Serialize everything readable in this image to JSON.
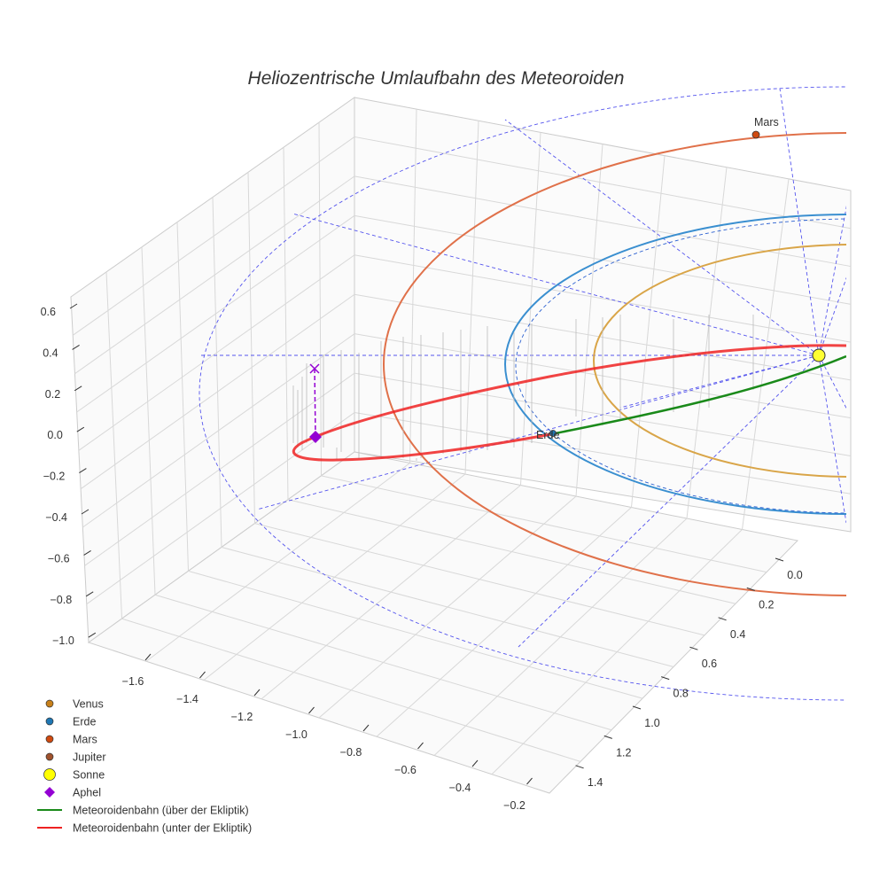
{
  "chart_data": {
    "type": "line3d",
    "title": "Heliozentrische Umlaufbahn des Meteoroiden",
    "x_ticks": [
      "−1.6",
      "−1.4",
      "−1.2",
      "−1.0",
      "−0.8",
      "−0.6",
      "−0.4",
      "−0.2"
    ],
    "y_ticks": [
      "0.0",
      "0.2",
      "0.4",
      "0.6",
      "0.8",
      "1.0",
      "1.2",
      "1.4"
    ],
    "z_ticks": [
      "0.6",
      "0.4",
      "0.2",
      "0.0",
      "−0.2",
      "−0.4",
      "−0.6",
      "−0.8",
      "−1.0"
    ],
    "xlim": [
      -1.7,
      -0.15
    ],
    "ylim": [
      -0.1,
      1.5
    ],
    "zlim": [
      -1.0,
      0.6
    ],
    "annotations": {
      "earth": "Erde",
      "mars": "Mars"
    },
    "legend": [
      {
        "label": "Venus",
        "marker": "circle",
        "color": "#c8801a"
      },
      {
        "label": "Erde",
        "marker": "circle",
        "color": "#1f77b4"
      },
      {
        "label": "Mars",
        "marker": "circle",
        "color": "#d04a10"
      },
      {
        "label": "Jupiter",
        "marker": "circle",
        "color": "#a0522d"
      },
      {
        "label": "Sonne",
        "marker": "circle",
        "color": "#ffff00"
      },
      {
        "label": "Aphel",
        "marker": "diamond",
        "color": "#9400d3"
      },
      {
        "label": "Meteoroidenbahn (über der Ekliptik)",
        "marker": "line",
        "color": "#1a8a1a"
      },
      {
        "label": "Meteoroidenbahn (unter der Ekliptik)",
        "marker": "line",
        "color": "#ee2222"
      }
    ],
    "legend_position": "lower-left",
    "colors": {
      "venus_orbit": "#d9a548",
      "earth_orbit": "#3a8fd0",
      "mars_orbit": "#e0714a",
      "ecliptic": "#5555ee"
    }
  }
}
